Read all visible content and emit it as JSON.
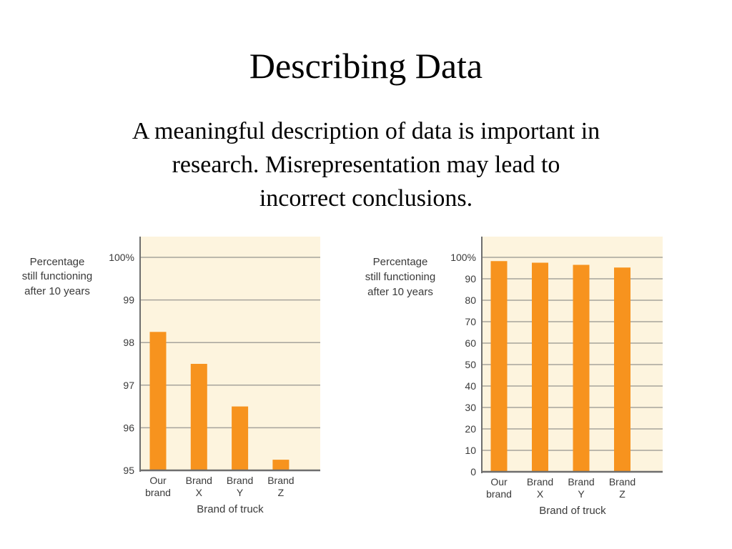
{
  "slide": {
    "title": "Describing Data",
    "body_lines": [
      "A meaningful description of data is important in",
      "research. Misrepresentation may lead to",
      "incorrect conclusions."
    ]
  },
  "colors": {
    "bar": "#f7931e",
    "plot_bg": "#fdf4de",
    "grid": "#a7a39c",
    "axis": "#6e6e6e"
  },
  "chart_data": [
    {
      "type": "bar",
      "title": "",
      "ylabel_lines": [
        "Percentage",
        "still functioning",
        "after 10 years"
      ],
      "xlabel": "Brand of truck",
      "categories": [
        [
          "Our",
          "brand"
        ],
        [
          "Brand",
          "X"
        ],
        [
          "Brand",
          "Y"
        ],
        [
          "Brand",
          "Z"
        ]
      ],
      "values": [
        98.25,
        97.5,
        96.5,
        95.25
      ],
      "ylim": [
        95,
        100
      ],
      "yticks": [
        95,
        96,
        97,
        98,
        99,
        100
      ],
      "ytick_labels": [
        "95",
        "96",
        "97",
        "98",
        "99",
        "100%"
      ],
      "grid": true
    },
    {
      "type": "bar",
      "title": "",
      "ylabel_lines": [
        "Percentage",
        "still functioning",
        "after 10 years"
      ],
      "xlabel": "Brand of truck",
      "categories": [
        [
          "Our",
          "brand"
        ],
        [
          "Brand",
          "X"
        ],
        [
          "Brand",
          "Y"
        ],
        [
          "Brand",
          "Z"
        ]
      ],
      "values": [
        98.25,
        97.5,
        96.5,
        95.25
      ],
      "ylim": [
        0,
        100
      ],
      "yticks": [
        0,
        10,
        20,
        30,
        40,
        50,
        60,
        70,
        80,
        90,
        100
      ],
      "ytick_labels": [
        "0",
        "10",
        "20",
        "30",
        "40",
        "50",
        "60",
        "70",
        "80",
        "90",
        "100%"
      ],
      "grid": true
    }
  ]
}
